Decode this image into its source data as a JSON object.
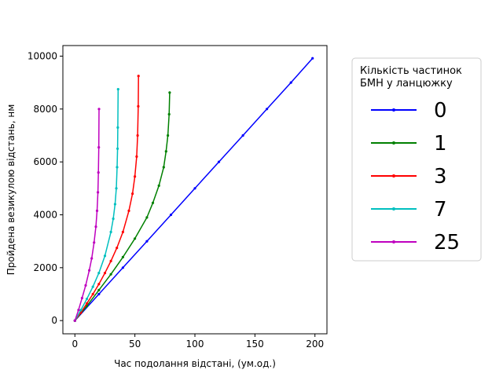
{
  "chart_data": {
    "type": "line",
    "xlabel": "Час подолання відстані, (ум.од.)",
    "ylabel": "Пройдена везикулою відстань, нм",
    "xlim": [
      -10,
      210
    ],
    "ylim": [
      -500,
      10400
    ],
    "xticks": [
      0,
      50,
      100,
      150,
      200
    ],
    "yticks": [
      0,
      2000,
      4000,
      6000,
      8000,
      10000
    ],
    "xtick_labels": [
      "0",
      "50",
      "100",
      "150",
      "200"
    ],
    "ytick_labels": [
      "0",
      "2000",
      "4000",
      "6000",
      "8000",
      "10000"
    ],
    "grid": false,
    "legend": {
      "title": [
        "Кількість частинок",
        "БМН у ланцюжку"
      ],
      "placement": "outside-right"
    },
    "series": [
      {
        "name": "0",
        "color": "#0000ff",
        "x": [
          0,
          20,
          40,
          60,
          80,
          100,
          120,
          140,
          160,
          180,
          198
        ],
        "y": [
          0,
          1000,
          2000,
          3000,
          4000,
          5000,
          6000,
          7000,
          8000,
          9000,
          9920
        ]
      },
      {
        "name": "1",
        "color": "#008000",
        "x": [
          0,
          10,
          20,
          30,
          40,
          50,
          60,
          65,
          70,
          74,
          76,
          77.5,
          78.5,
          79
        ],
        "y": [
          0,
          550,
          1150,
          1750,
          2400,
          3100,
          3900,
          4450,
          5100,
          5800,
          6400,
          7000,
          7800,
          8620
        ]
      },
      {
        "name": "3",
        "color": "#ff0000",
        "x": [
          0,
          5,
          10,
          15,
          20,
          25,
          30,
          35,
          40,
          45,
          48,
          50,
          51.5,
          52.3,
          52.8,
          53
        ],
        "y": [
          0,
          300,
          650,
          1000,
          1380,
          1800,
          2250,
          2750,
          3350,
          4150,
          4800,
          5450,
          6200,
          7000,
          8100,
          9250
        ]
      },
      {
        "name": "7",
        "color": "#00bfbf",
        "x": [
          0,
          5,
          10,
          15,
          20,
          25,
          30,
          32,
          33.5,
          34.5,
          35.2,
          35.6,
          35.8,
          36
        ],
        "y": [
          0,
          400,
          820,
          1280,
          1800,
          2450,
          3350,
          3850,
          4400,
          5000,
          5800,
          6500,
          7300,
          8750
        ]
      },
      {
        "name": "25",
        "color": "#bf00bf",
        "x": [
          0,
          3,
          6,
          9,
          12,
          14,
          16,
          17.5,
          18.5,
          19.2,
          19.6,
          19.9,
          20.1
        ],
        "y": [
          0,
          400,
          850,
          1330,
          1900,
          2350,
          2950,
          3550,
          4150,
          4850,
          5600,
          6550,
          8000
        ]
      }
    ]
  }
}
